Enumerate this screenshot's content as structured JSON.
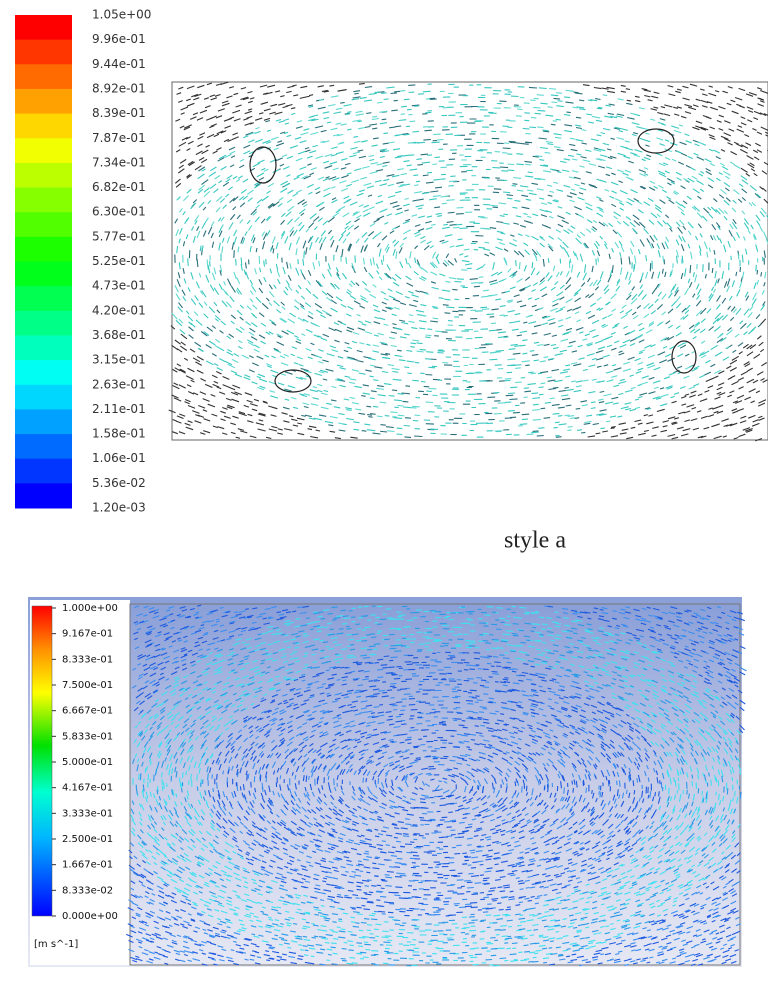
{
  "panel_a": {
    "legend_labels": [
      "1.05e+00",
      "9.96e-01",
      "9.44e-01",
      "8.92e-01",
      "8.39e-01",
      "7.87e-01",
      "7.34e-01",
      "6.82e-01",
      "6.30e-01",
      "5.77e-01",
      "5.25e-01",
      "4.73e-01",
      "4.20e-01",
      "3.68e-01",
      "3.15e-01",
      "2.63e-01",
      "2.11e-01",
      "1.58e-01",
      "1.06e-01",
      "5.36e-02",
      "1.20e-03"
    ],
    "caption": "style a"
  },
  "panel_b": {
    "legend_labels": [
      "1.000e+00",
      "9.167e-01",
      "8.333e-01",
      "7.500e-01",
      "6.667e-01",
      "5.833e-01",
      "5.000e-01",
      "4.167e-01",
      "3.333e-01",
      "2.500e-01",
      "1.667e-01",
      "8.333e-02",
      "0.000e+00"
    ],
    "unit": "[m s^-1]"
  }
}
